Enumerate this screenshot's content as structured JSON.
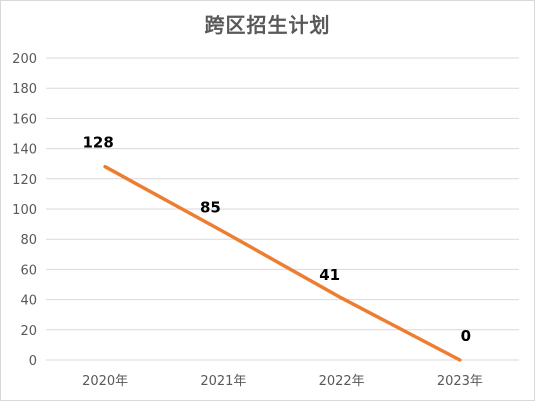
{
  "chart_data": {
    "type": "line",
    "title": "跨区招生计划",
    "xlabel": "",
    "ylabel": "",
    "categories": [
      "2020年",
      "2021年",
      "2022年",
      "2023年"
    ],
    "series": [
      {
        "values": [
          128,
          85,
          41,
          0
        ],
        "color": "#ed7d31"
      }
    ],
    "data_labels": [
      "128",
      "85",
      "41",
      "0"
    ],
    "ylim": [
      0,
      200
    ],
    "y_ticks": [
      0,
      20,
      40,
      60,
      80,
      100,
      120,
      140,
      160,
      180,
      200
    ],
    "grid": true,
    "legend": "none"
  },
  "colors": {
    "line": "#ed7d31",
    "grid": "#d9d9d9",
    "axis_text": "#595959"
  }
}
